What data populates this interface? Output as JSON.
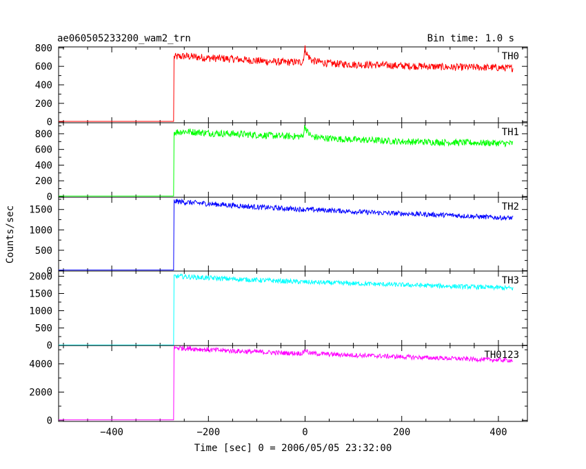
{
  "chart_data": {
    "type": "line",
    "title": "ae060505233200_wam2_trn",
    "bin_time_label": "Bin time: 1.0 s",
    "xlabel": "Time [sec] 0 = 2006/05/05 23:32:00",
    "ylabel": "Counts/sec",
    "xlim": [
      -510,
      460
    ],
    "x_ticks": [
      -400,
      -200,
      0,
      200,
      400
    ],
    "x_tick_labels": [
      "−400",
      "−200",
      "0",
      "200",
      "400"
    ],
    "rise_time": -272,
    "series": [
      {
        "name": "TH0",
        "color": "#ff0000",
        "ylim": [
          -10,
          810
        ],
        "y_ticks": [
          0,
          200,
          400,
          600,
          800
        ],
        "y_tick_labels": [
          "0",
          "200",
          "400",
          "600",
          "800"
        ],
        "x": [
          -510,
          -272,
          -271,
          -250,
          -200,
          -150,
          -100,
          -50,
          -5,
          0,
          5,
          15,
          50,
          100,
          150,
          200,
          250,
          300,
          350,
          400,
          430
        ],
        "y": [
          5,
          5,
          700,
          710,
          690,
          680,
          660,
          645,
          645,
          790,
          720,
          660,
          630,
          620,
          615,
          605,
          600,
          590,
          590,
          585,
          580
        ]
      },
      {
        "name": "TH1",
        "color": "#00ff00",
        "ylim": [
          -10,
          940
        ],
        "y_ticks": [
          0,
          200,
          400,
          600,
          800
        ],
        "y_tick_labels": [
          "0",
          "200",
          "400",
          "600",
          "800"
        ],
        "x": [
          -510,
          -272,
          -271,
          -250,
          -200,
          -150,
          -100,
          -50,
          -5,
          0,
          5,
          15,
          50,
          100,
          150,
          200,
          250,
          300,
          350,
          400,
          430
        ],
        "y": [
          5,
          5,
          820,
          830,
          810,
          800,
          785,
          770,
          765,
          900,
          820,
          760,
          740,
          725,
          715,
          700,
          695,
          690,
          685,
          680,
          675
        ]
      },
      {
        "name": "TH2",
        "color": "#0000ff",
        "ylim": [
          -10,
          1800
        ],
        "y_ticks": [
          0,
          500,
          1000,
          1500
        ],
        "y_tick_labels": [
          "0",
          "500",
          "1000",
          "1500"
        ],
        "x": [
          -510,
          -272,
          -271,
          -250,
          -200,
          -150,
          -100,
          -50,
          0,
          50,
          100,
          150,
          200,
          250,
          300,
          350,
          400,
          430
        ],
        "y": [
          15,
          15,
          1700,
          1680,
          1640,
          1600,
          1560,
          1530,
          1500,
          1480,
          1450,
          1420,
          1400,
          1380,
          1360,
          1330,
          1300,
          1290
        ]
      },
      {
        "name": "TH3",
        "color": "#00ffff",
        "ylim": [
          -10,
          2150
        ],
        "y_ticks": [
          0,
          500,
          1000,
          1500,
          2000
        ],
        "y_tick_labels": [
          "0",
          "500",
          "1000",
          "1500",
          "2000"
        ],
        "x": [
          -510,
          -272,
          -271,
          -250,
          -200,
          -150,
          -100,
          -50,
          0,
          50,
          100,
          150,
          200,
          250,
          300,
          350,
          400,
          430
        ],
        "y": [
          5,
          5,
          2000,
          1990,
          1950,
          1920,
          1890,
          1860,
          1830,
          1810,
          1790,
          1770,
          1750,
          1730,
          1710,
          1690,
          1670,
          1650
        ]
      },
      {
        "name": "TH0123",
        "color": "#ff00ff",
        "ylim": [
          -80,
          5300
        ],
        "y_ticks": [
          0,
          2000,
          4000
        ],
        "y_tick_labels": [
          "0",
          "2000",
          "4000"
        ],
        "x": [
          -510,
          -272,
          -271,
          -250,
          -200,
          -150,
          -100,
          -50,
          -5,
          0,
          10,
          50,
          100,
          150,
          200,
          250,
          300,
          350,
          400,
          430
        ],
        "y": [
          30,
          30,
          5150,
          5120,
          5000,
          4920,
          4850,
          4780,
          4750,
          5000,
          4750,
          4680,
          4620,
          4560,
          4500,
          4440,
          4390,
          4330,
          4280,
          4250
        ]
      }
    ]
  }
}
